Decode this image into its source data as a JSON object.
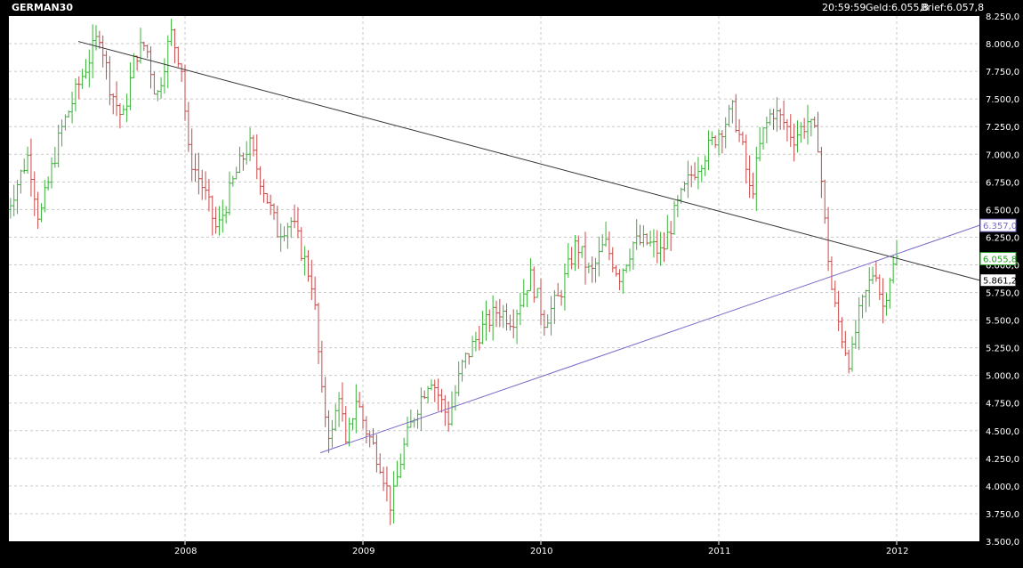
{
  "header": {
    "symbol": "GERMAN30",
    "time": "20:59:59",
    "bid_text": "Geld:6.055,8",
    "ask_text": "Brief:6.057,8"
  },
  "colors": {
    "background": "#000000",
    "plot_area": "#ffffff",
    "grid": "#c8c8c8",
    "up_bar": "#39b339",
    "down_bar": "#c84848",
    "trend_down": "#333333",
    "trend_up": "#7a68c8",
    "current_price": "#20a020"
  },
  "chart_data": {
    "type": "ohlc-bar",
    "title": "GERMAN30",
    "x_labels": [
      "2008",
      "2009",
      "2010",
      "2011",
      "2012"
    ],
    "y_ticks": [
      "8.250,0",
      "8.000,0",
      "7.750,0",
      "7.500,0",
      "7.250,0",
      "7.000,0",
      "6.750,0",
      "6.500,0",
      "6.250,0",
      "6.000,0",
      "5.750,0",
      "5.500,0",
      "5.250,0",
      "5.000,0",
      "4.750,0",
      "4.500,0",
      "4.250,0",
      "4.000,0",
      "3.750,0",
      "3.500,0"
    ],
    "y_tick_values": [
      8250,
      8000,
      7750,
      7500,
      7250,
      7000,
      6750,
      6500,
      6250,
      6000,
      5750,
      5500,
      5250,
      5000,
      4750,
      4500,
      4250,
      4000,
      3750,
      3500
    ],
    "ylim": [
      3500,
      8250
    ],
    "grid": true,
    "price_labels": [
      {
        "text": "6.357,0",
        "value": 6357,
        "kind": "trend-up"
      },
      {
        "text": "6.055,8",
        "value": 6055.8,
        "kind": "current"
      },
      {
        "text": "5.861,2",
        "value": 5861.2,
        "kind": "trend-down"
      }
    ],
    "trendlines": [
      {
        "name": "down",
        "x1": 2007.4,
        "y1": 8020,
        "x2": 2012.48,
        "y2": 5861.2
      },
      {
        "name": "up",
        "x1": 2008.76,
        "y1": 4300,
        "x2": 2012.48,
        "y2": 6357
      }
    ],
    "waypoints": [
      [
        2007.0,
        6500
      ],
      [
        2007.12,
        7000
      ],
      [
        2007.18,
        6400
      ],
      [
        2007.3,
        7200
      ],
      [
        2007.42,
        7700
      ],
      [
        2007.52,
        8100
      ],
      [
        2007.58,
        7600
      ],
      [
        2007.65,
        7300
      ],
      [
        2007.72,
        7900
      ],
      [
        2007.78,
        8000
      ],
      [
        2007.84,
        7500
      ],
      [
        2007.92,
        8100
      ],
      [
        2007.98,
        7800
      ],
      [
        2008.02,
        7000
      ],
      [
        2008.1,
        6700
      ],
      [
        2008.18,
        6300
      ],
      [
        2008.28,
        6800
      ],
      [
        2008.36,
        7100
      ],
      [
        2008.44,
        6700
      ],
      [
        2008.52,
        6300
      ],
      [
        2008.6,
        6400
      ],
      [
        2008.68,
        6000
      ],
      [
        2008.72,
        5800
      ],
      [
        2008.77,
        4800
      ],
      [
        2008.82,
        4400
      ],
      [
        2008.87,
        4900
      ],
      [
        2008.9,
        4300
      ],
      [
        2008.96,
        4800
      ],
      [
        2009.02,
        4500
      ],
      [
        2009.1,
        4200
      ],
      [
        2009.16,
        3800
      ],
      [
        2009.22,
        4300
      ],
      [
        2009.3,
        4700
      ],
      [
        2009.38,
        5000
      ],
      [
        2009.48,
        4600
      ],
      [
        2009.56,
        5100
      ],
      [
        2009.66,
        5400
      ],
      [
        2009.76,
        5600
      ],
      [
        2009.84,
        5500
      ],
      [
        2009.94,
        5900
      ],
      [
        2010.02,
        5500
      ],
      [
        2010.1,
        5700
      ],
      [
        2010.2,
        6200
      ],
      [
        2010.28,
        5900
      ],
      [
        2010.36,
        6200
      ],
      [
        2010.44,
        5900
      ],
      [
        2010.52,
        6200
      ],
      [
        2010.6,
        6200
      ],
      [
        2010.68,
        6100
      ],
      [
        2010.76,
        6500
      ],
      [
        2010.84,
        6800
      ],
      [
        2010.92,
        7000
      ],
      [
        2011.02,
        7250
      ],
      [
        2011.08,
        7400
      ],
      [
        2011.14,
        7000
      ],
      [
        2011.18,
        6600
      ],
      [
        2011.24,
        7150
      ],
      [
        2011.3,
        7400
      ],
      [
        2011.36,
        7300
      ],
      [
        2011.42,
        7150
      ],
      [
        2011.5,
        7300
      ],
      [
        2011.56,
        7100
      ],
      [
        2011.6,
        6300
      ],
      [
        2011.64,
        5700
      ],
      [
        2011.7,
        5300
      ],
      [
        2011.74,
        5100
      ],
      [
        2011.78,
        5500
      ],
      [
        2011.84,
        5800
      ],
      [
        2011.88,
        6000
      ],
      [
        2011.92,
        5600
      ],
      [
        2011.96,
        5900
      ],
      [
        2012.0,
        6050
      ]
    ]
  }
}
